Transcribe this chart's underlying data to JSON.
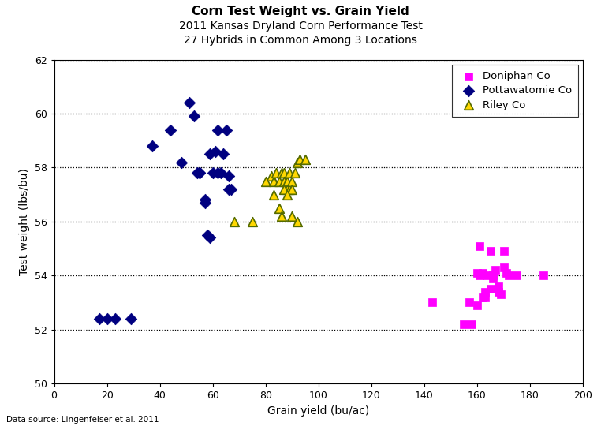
{
  "title": "Corn Test Weight vs. Grain Yield",
  "subtitle1": "2011 Kansas Dryland Corn Performance Test",
  "subtitle2": "27 Hybrids in Common Among 3 Locations",
  "xlabel": "Grain yield (bu/ac)",
  "ylabel": "Test weight (lbs/bu)",
  "datasource": "Data source: Lingenfelser et al. 2011",
  "xlim": [
    0,
    200
  ],
  "ylim": [
    50,
    62
  ],
  "xticks": [
    0,
    20,
    40,
    60,
    80,
    100,
    120,
    140,
    160,
    180,
    200
  ],
  "yticks": [
    50,
    52,
    54,
    56,
    58,
    60,
    62
  ],
  "doniphan": {
    "x": [
      143,
      155,
      157,
      158,
      160,
      160,
      161,
      161,
      162,
      162,
      163,
      163,
      164,
      165,
      165,
      166,
      166,
      167,
      168,
      168,
      169,
      170,
      170,
      171,
      172,
      175,
      185
    ],
    "y": [
      53.0,
      52.2,
      53.0,
      52.2,
      52.9,
      54.1,
      55.1,
      54.0,
      53.2,
      54.1,
      53.2,
      53.4,
      54.0,
      53.5,
      54.9,
      53.9,
      54.0,
      54.2,
      53.6,
      53.4,
      53.3,
      54.9,
      54.3,
      54.1,
      54.0,
      54.0,
      54.0
    ],
    "color": "#FF00FF",
    "marker": "s",
    "label": "Doniphan Co",
    "size": 55
  },
  "pottawatomie": {
    "x": [
      17,
      20,
      23,
      29,
      37,
      44,
      48,
      51,
      53,
      54,
      55,
      55,
      57,
      57,
      58,
      59,
      59,
      60,
      61,
      62,
      62,
      63,
      64,
      65,
      66,
      66,
      67
    ],
    "y": [
      52.4,
      52.4,
      52.4,
      52.4,
      58.8,
      59.4,
      58.2,
      60.4,
      59.9,
      57.8,
      57.8,
      57.8,
      56.7,
      56.8,
      55.5,
      55.4,
      58.5,
      57.8,
      58.6,
      59.4,
      57.8,
      57.8,
      58.5,
      59.4,
      57.7,
      57.2,
      57.2
    ],
    "color": "#000080",
    "marker": "D",
    "label": "Pottawatomie Co",
    "size": 55
  },
  "riley": {
    "x": [
      68,
      75,
      80,
      82,
      83,
      84,
      85,
      86,
      87,
      87,
      88,
      88,
      89,
      89,
      90,
      90,
      91,
      92,
      93,
      83,
      95,
      87,
      85,
      86,
      88,
      90,
      92
    ],
    "y": [
      56.0,
      56.0,
      57.5,
      57.7,
      57.5,
      57.8,
      57.5,
      57.8,
      57.8,
      57.5,
      57.5,
      57.2,
      57.8,
      57.2,
      57.5,
      57.2,
      57.8,
      58.2,
      58.3,
      57.0,
      58.3,
      57.2,
      56.5,
      56.2,
      57.0,
      56.2,
      56.0
    ],
    "color": "#FFD700",
    "marker": "^",
    "label": "Riley Co",
    "size": 70
  },
  "legend_loc": "upper right",
  "bg_color": "#FFFFFF",
  "grid_color": "#000000"
}
